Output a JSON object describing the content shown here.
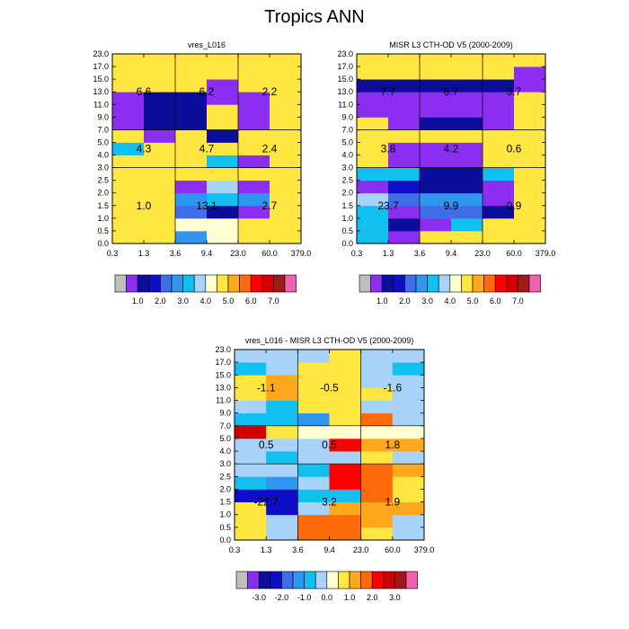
{
  "title": "Tropics ANN",
  "chart_data": [
    {
      "type": "heatmap",
      "id": "model",
      "title": "vres_L016",
      "x_ticks": [
        "0.3",
        "1.3",
        "3.6",
        "9.4",
        "23.0",
        "60.0",
        "379.0"
      ],
      "y_ticks": [
        "0.0",
        "0.5",
        "1.0",
        "1.5",
        "2.0",
        "2.5",
        "3.0",
        "4.0",
        "5.0",
        "7.0",
        "9.0",
        "11.0",
        "13.0",
        "15.0",
        "17.0",
        "23.0"
      ],
      "grid": "x=[0,2,4,6] y=[0,6,9,15]",
      "cells": [
        [
          9,
          9,
          5,
          8,
          9,
          9
        ],
        [
          9,
          9,
          8,
          8,
          9,
          9
        ],
        [
          9,
          9,
          4,
          2,
          1,
          9
        ],
        [
          9,
          9,
          5,
          6,
          5,
          9
        ],
        [
          9,
          9,
          1,
          7,
          1,
          9
        ],
        [
          9,
          9,
          9,
          9,
          9,
          9
        ],
        [
          9,
          9,
          9,
          6,
          1,
          9
        ],
        [
          6,
          9,
          9,
          9,
          9,
          9
        ],
        [
          9,
          1,
          9,
          2,
          9,
          9
        ],
        [
          1,
          2,
          2,
          9,
          1,
          9
        ],
        [
          1,
          2,
          2,
          9,
          1,
          9
        ],
        [
          1,
          2,
          2,
          1,
          1,
          9
        ],
        [
          9,
          9,
          9,
          1,
          9,
          9
        ],
        [
          9,
          9,
          9,
          9,
          9,
          9
        ],
        [
          9,
          9,
          9,
          9,
          9,
          9
        ]
      ],
      "annotations": [
        {
          "text": "6.6",
          "cx": 1,
          "cy": 12
        },
        {
          "text": "6.2",
          "cx": 3,
          "cy": 12
        },
        {
          "text": "2.2",
          "cx": 5,
          "cy": 12
        },
        {
          "text": "4.3",
          "cx": 1,
          "cy": 7.5
        },
        {
          "text": "4.7",
          "cx": 3,
          "cy": 7.5
        },
        {
          "text": "2.4",
          "cx": 5,
          "cy": 7.5
        },
        {
          "text": "1.0",
          "cx": 1,
          "cy": 3
        },
        {
          "text": "13.1",
          "cx": 3,
          "cy": 3
        },
        {
          "text": "2.7",
          "cx": 5,
          "cy": 3
        }
      ],
      "colorbar": {
        "colors": "abs",
        "labels": [
          "1.0",
          "2.0",
          "3.0",
          "4.0",
          "5.0",
          "6.0",
          "7.0"
        ]
      }
    },
    {
      "type": "heatmap",
      "id": "obs",
      "title": "MISR L3 CTH-OD V5 (2000-2009)",
      "x_ticks": [
        "0.3",
        "1.3",
        "3.6",
        "9.4",
        "23.0",
        "60.0",
        "379.0"
      ],
      "y_ticks": [
        "0.0",
        "0.5",
        "1.0",
        "1.5",
        "2.0",
        "2.5",
        "3.0",
        "4.0",
        "5.0",
        "7.0",
        "9.0",
        "11.0",
        "13.0",
        "15.0",
        "17.0",
        "23.0"
      ],
      "grid": "x=[0,2,4,6] y=[0,6,9,15]",
      "cells": [
        [
          6,
          1,
          9,
          9,
          9,
          9
        ],
        [
          6,
          2,
          1,
          6,
          9,
          9
        ],
        [
          6,
          1,
          4,
          4,
          2,
          9
        ],
        [
          7,
          4,
          5,
          5,
          1,
          9
        ],
        [
          1,
          3,
          2,
          2,
          1,
          9
        ],
        [
          6,
          6,
          2,
          2,
          6,
          9
        ],
        [
          9,
          1,
          1,
          1,
          9,
          9
        ],
        [
          9,
          1,
          1,
          1,
          9,
          9
        ],
        [
          9,
          9,
          9,
          9,
          9,
          9
        ],
        [
          9,
          1,
          2,
          2,
          1,
          9
        ],
        [
          1,
          1,
          1,
          1,
          1,
          9
        ],
        [
          1,
          1,
          1,
          1,
          1,
          9
        ],
        [
          2,
          2,
          2,
          2,
          2,
          1
        ],
        [
          9,
          9,
          9,
          9,
          9,
          1
        ],
        [
          9,
          9,
          9,
          9,
          9,
          9
        ]
      ],
      "annotations": [
        {
          "text": "7.7",
          "cx": 1,
          "cy": 12
        },
        {
          "text": "6.7",
          "cx": 3,
          "cy": 12
        },
        {
          "text": "3.7",
          "cx": 5,
          "cy": 12
        },
        {
          "text": "3.8",
          "cx": 1,
          "cy": 7.5
        },
        {
          "text": "4.2",
          "cx": 3,
          "cy": 7.5
        },
        {
          "text": "0.6",
          "cx": 5,
          "cy": 7.5
        },
        {
          "text": "23.7",
          "cx": 1,
          "cy": 3
        },
        {
          "text": "9.9",
          "cx": 3,
          "cy": 3
        },
        {
          "text": "0.9",
          "cx": 5,
          "cy": 3
        }
      ],
      "colorbar": {
        "colors": "abs",
        "labels": [
          "1.0",
          "2.0",
          "3.0",
          "4.0",
          "5.0",
          "6.0",
          "7.0"
        ]
      }
    },
    {
      "type": "heatmap",
      "id": "diff",
      "title": "vres_L016 - MISR L3 CTH-OD V5 (2000-2009)",
      "x_ticks": [
        "0.3",
        "1.3",
        "3.6",
        "9.4",
        "23.0",
        "60.0",
        "379.0"
      ],
      "y_ticks": [
        "0.0",
        "0.5",
        "1.0",
        "1.5",
        "2.0",
        "2.5",
        "3.0",
        "4.0",
        "5.0",
        "7.0",
        "9.0",
        "11.0",
        "13.0",
        "15.0",
        "17.0",
        "23.0"
      ],
      "grid": "x=[0,2,4,6] y=[0,6,9,15]",
      "cells": [
        [
          9,
          7,
          11,
          11,
          9,
          7
        ],
        [
          9,
          7,
          11,
          11,
          10,
          7
        ],
        [
          9,
          3,
          7,
          10,
          10,
          10
        ],
        [
          3,
          3,
          6,
          6,
          11,
          9
        ],
        [
          6,
          5,
          7,
          12,
          11,
          9
        ],
        [
          7,
          7,
          6,
          12,
          11,
          10
        ],
        [
          7,
          6,
          7,
          7,
          9,
          7
        ],
        [
          7,
          7,
          7,
          12,
          10,
          10
        ],
        [
          13,
          9,
          8,
          8,
          8,
          8
        ],
        [
          6,
          6,
          5,
          9,
          11,
          7
        ],
        [
          7,
          6,
          9,
          9,
          7,
          7
        ],
        [
          9,
          10,
          9,
          9,
          9,
          7
        ],
        [
          9,
          10,
          9,
          9,
          7,
          7
        ],
        [
          6,
          7,
          9,
          9,
          7,
          6
        ],
        [
          7,
          7,
          7,
          9,
          7,
          7
        ]
      ],
      "annotations": [
        {
          "text": "-1.1",
          "cx": 1,
          "cy": 12
        },
        {
          "text": "-0.5",
          "cx": 3,
          "cy": 12
        },
        {
          "text": "-1.6",
          "cx": 5,
          "cy": 12
        },
        {
          "text": "0.5",
          "cx": 1,
          "cy": 7.5
        },
        {
          "text": "0.5",
          "cx": 3,
          "cy": 7.5
        },
        {
          "text": "1.8",
          "cx": 5,
          "cy": 7.5
        },
        {
          "text": "-22.7",
          "cx": 1,
          "cy": 3
        },
        {
          "text": "3.2",
          "cx": 3,
          "cy": 3
        },
        {
          "text": "1.9",
          "cx": 5,
          "cy": 3
        }
      ],
      "colorbar": {
        "colors": "diff",
        "labels": [
          "-3.0",
          "-2.0",
          "-1.0",
          "0.0",
          "1.0",
          "2.0",
          "3.0"
        ]
      }
    }
  ],
  "palettes": {
    "abs": [
      "#bebebe",
      "#8c2ef2",
      "#0d0d9c",
      "#0e0ec8",
      "#3f6ee8",
      "#2e96f0",
      "#12c0f0",
      "#a6d3f7",
      "#ffffd2",
      "#ffe640",
      "#ffa81e",
      "#ff6a0a",
      "#ff0000",
      "#d00000",
      "#a01818",
      "#f060b0"
    ],
    "diff": [
      "#bebebe",
      "#8c2ef2",
      "#0d0d9c",
      "#0e0ec8",
      "#3f6ee8",
      "#2e96f0",
      "#12c0f0",
      "#a6d3f7",
      "#ffffd2",
      "#ffe640",
      "#ffa81e",
      "#ff6a0a",
      "#ff0000",
      "#d00000",
      "#a01818",
      "#f060b0"
    ]
  }
}
